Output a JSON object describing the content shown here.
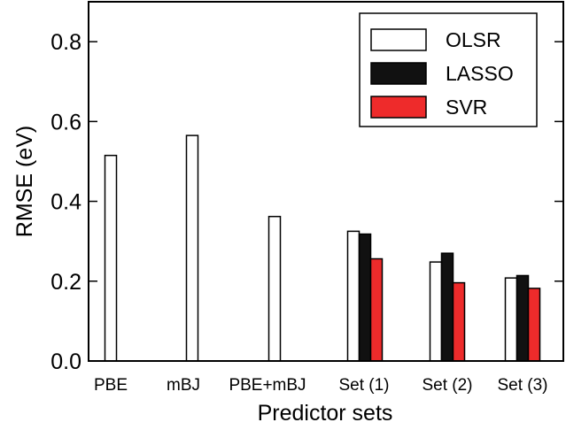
{
  "chart_data": {
    "type": "bar",
    "title": "",
    "xlabel": "Predictor sets",
    "ylabel": "RMSE (eV)",
    "ylim": [
      0.0,
      0.9
    ],
    "yticks": [
      0.0,
      0.2,
      0.4,
      0.6,
      0.8
    ],
    "ytick_labels": [
      "0.0",
      "0.2",
      "0.4",
      "0.6",
      "0.8"
    ],
    "categories": [
      "PBE",
      "mBJ",
      "PBE+mBJ",
      "Set (1)",
      "Set (2)",
      "Set (3)"
    ],
    "series": [
      {
        "name": "OLSR",
        "color": "#ffffff",
        "values": [
          0.515,
          0.565,
          0.362,
          0.325,
          0.248,
          0.208
        ]
      },
      {
        "name": "LASSO",
        "color": "#111111",
        "values": [
          null,
          null,
          null,
          0.318,
          0.27,
          0.214
        ]
      },
      {
        "name": "SVR",
        "color": "#ee2b2b",
        "values": [
          null,
          null,
          null,
          0.256,
          0.196,
          0.182
        ]
      }
    ],
    "legend_position": "top-right",
    "grid": false
  }
}
